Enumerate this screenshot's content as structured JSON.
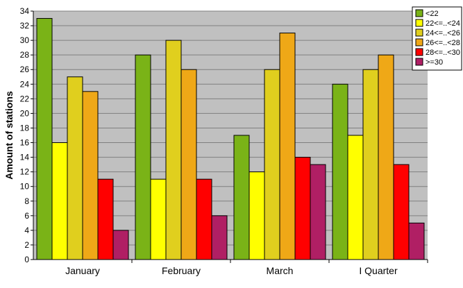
{
  "chart_data": {
    "type": "bar",
    "title": "",
    "xlabel": "",
    "ylabel": "Amount of stations",
    "ylim": [
      0,
      34
    ],
    "yticks": [
      0,
      2,
      4,
      6,
      8,
      10,
      12,
      14,
      16,
      18,
      20,
      22,
      24,
      26,
      28,
      30,
      32,
      34
    ],
    "grid": true,
    "legend_position": "top-right",
    "plot_background": "#c0c0c0",
    "categories": [
      "January",
      "February",
      "March",
      "I Quarter"
    ],
    "series": [
      {
        "name": "<22",
        "color": "#7ab317",
        "values": [
          33,
          28,
          17,
          24
        ]
      },
      {
        "name": "22<=..<24",
        "color": "#ffff00",
        "values": [
          16,
          11,
          12,
          17
        ]
      },
      {
        "name": "24<=..<26",
        "color": "#e0cf1e",
        "values": [
          25,
          30,
          26,
          26
        ]
      },
      {
        "name": "26<=..<28",
        "color": "#efa817",
        "values": [
          23,
          26,
          31,
          28
        ]
      },
      {
        "name": "28<=..<30",
        "color": "#ff0000",
        "values": [
          11,
          11,
          14,
          13
        ]
      },
      {
        "name": ">=30",
        "color": "#b01f64",
        "values": [
          4,
          6,
          13,
          5
        ]
      }
    ]
  }
}
